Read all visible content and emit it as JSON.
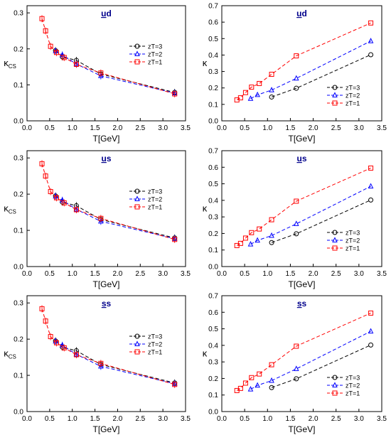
{
  "chart_data": [
    {
      "type": "line",
      "title": "ud",
      "title_underlined": "u",
      "xlabel": "T[GeV]",
      "ylabel": "κ",
      "ylabel_sub": "CS",
      "xlim": [
        0,
        3.5
      ],
      "ylim": [
        0,
        0.32
      ],
      "xticks": [
        0.0,
        0.5,
        1.0,
        1.5,
        2.0,
        2.5,
        3.0,
        3.5
      ],
      "yticks": [
        0.0,
        0.1,
        0.2,
        0.3
      ],
      "grid": false,
      "legend_position": "right-middle",
      "series": [
        {
          "name": "zT=3",
          "color": "#000000",
          "marker": "circle",
          "x": [
            0.63,
            0.78,
            1.09,
            1.63,
            3.26
          ],
          "y": [
            0.195,
            0.178,
            0.168,
            0.13,
            0.079
          ]
        },
        {
          "name": "zT=2",
          "color": "#0000ff",
          "marker": "triangle",
          "x": [
            0.63,
            0.78,
            1.09,
            1.63,
            3.26
          ],
          "y": [
            0.194,
            0.183,
            0.158,
            0.125,
            0.077
          ]
        },
        {
          "name": "zT=1",
          "color": "#ff0000",
          "marker": "square",
          "x": [
            0.33,
            0.41,
            0.52,
            0.65,
            0.82,
            1.09,
            1.63,
            3.26
          ],
          "y": [
            0.284,
            0.25,
            0.207,
            0.19,
            0.176,
            0.157,
            0.133,
            0.075
          ]
        }
      ]
    },
    {
      "type": "line",
      "title": "ud",
      "title_underlined": "u",
      "xlabel": "T[GeV]",
      "ylabel": "κ",
      "ylabel_sub": "",
      "xlim": [
        0,
        3.5
      ],
      "ylim": [
        0,
        0.7
      ],
      "xticks": [
        0.0,
        0.5,
        1.0,
        1.5,
        2.0,
        2.5,
        3.0,
        3.5
      ],
      "yticks": [
        0.0,
        0.1,
        0.2,
        0.3,
        0.4,
        0.5,
        0.6,
        0.7
      ],
      "grid": false,
      "legend_position": "bottom-right",
      "series": [
        {
          "name": "zT=3",
          "color": "#000000",
          "marker": "circle",
          "x": [
            1.09,
            1.63,
            3.26
          ],
          "y": [
            0.145,
            0.198,
            0.402
          ]
        },
        {
          "name": "zT=2",
          "color": "#0000ff",
          "marker": "triangle",
          "x": [
            0.63,
            0.78,
            1.09,
            1.63,
            3.26
          ],
          "y": [
            0.135,
            0.158,
            0.187,
            0.258,
            0.485
          ]
        },
        {
          "name": "zT=1",
          "color": "#ff0000",
          "marker": "square",
          "x": [
            0.33,
            0.41,
            0.52,
            0.65,
            0.82,
            1.09,
            1.63,
            3.26
          ],
          "y": [
            0.127,
            0.14,
            0.172,
            0.205,
            0.227,
            0.283,
            0.395,
            0.595
          ]
        }
      ]
    },
    {
      "type": "line",
      "title": "us",
      "title_underlined": "u",
      "xlabel": "T[GeV]",
      "ylabel": "κ",
      "ylabel_sub": "CS",
      "xlim": [
        0,
        3.5
      ],
      "ylim": [
        0,
        0.32
      ],
      "xticks": [
        0.0,
        0.5,
        1.0,
        1.5,
        2.0,
        2.5,
        3.0,
        3.5
      ],
      "yticks": [
        0.0,
        0.1,
        0.2,
        0.3
      ],
      "grid": false,
      "legend_position": "right-middle",
      "series": [
        {
          "name": "zT=3",
          "color": "#000000",
          "marker": "circle",
          "x": [
            0.63,
            0.78,
            1.09,
            1.63,
            3.26
          ],
          "y": [
            0.195,
            0.178,
            0.168,
            0.13,
            0.079
          ]
        },
        {
          "name": "zT=2",
          "color": "#0000ff",
          "marker": "triangle",
          "x": [
            0.63,
            0.78,
            1.09,
            1.63,
            3.26
          ],
          "y": [
            0.194,
            0.183,
            0.158,
            0.125,
            0.077
          ]
        },
        {
          "name": "zT=1",
          "color": "#ff0000",
          "marker": "square",
          "x": [
            0.33,
            0.41,
            0.52,
            0.65,
            0.82,
            1.09,
            1.63,
            3.26
          ],
          "y": [
            0.284,
            0.25,
            0.207,
            0.19,
            0.176,
            0.157,
            0.133,
            0.075
          ]
        }
      ]
    },
    {
      "type": "line",
      "title": "us",
      "title_underlined": "u",
      "xlabel": "T[GeV]",
      "ylabel": "κ",
      "ylabel_sub": "",
      "xlim": [
        0,
        3.5
      ],
      "ylim": [
        0,
        0.7
      ],
      "xticks": [
        0.0,
        0.5,
        1.0,
        1.5,
        2.0,
        2.5,
        3.0,
        3.5
      ],
      "yticks": [
        0.0,
        0.1,
        0.2,
        0.3,
        0.4,
        0.5,
        0.6,
        0.7
      ],
      "grid": false,
      "legend_position": "bottom-right",
      "series": [
        {
          "name": "zT=3",
          "color": "#000000",
          "marker": "circle",
          "x": [
            1.09,
            1.63,
            3.26
          ],
          "y": [
            0.145,
            0.198,
            0.402
          ]
        },
        {
          "name": "zT=2",
          "color": "#0000ff",
          "marker": "triangle",
          "x": [
            0.63,
            0.78,
            1.09,
            1.63,
            3.26
          ],
          "y": [
            0.135,
            0.158,
            0.187,
            0.258,
            0.485
          ]
        },
        {
          "name": "zT=1",
          "color": "#ff0000",
          "marker": "square",
          "x": [
            0.33,
            0.41,
            0.52,
            0.65,
            0.82,
            1.09,
            1.63,
            3.26
          ],
          "y": [
            0.127,
            0.14,
            0.172,
            0.205,
            0.227,
            0.283,
            0.395,
            0.595
          ]
        }
      ]
    },
    {
      "type": "line",
      "title": "ss",
      "title_underlined": "s",
      "xlabel": "T[GeV]",
      "ylabel": "κ",
      "ylabel_sub": "CS",
      "xlim": [
        0,
        3.5
      ],
      "ylim": [
        0,
        0.32
      ],
      "xticks": [
        0.0,
        0.5,
        1.0,
        1.5,
        2.0,
        2.5,
        3.0,
        3.5
      ],
      "yticks": [
        0.0,
        0.1,
        0.2,
        0.3
      ],
      "grid": false,
      "legend_position": "right-middle",
      "series": [
        {
          "name": "zT=3",
          "color": "#000000",
          "marker": "circle",
          "x": [
            0.63,
            0.78,
            1.09,
            1.63,
            3.26
          ],
          "y": [
            0.195,
            0.178,
            0.168,
            0.13,
            0.079
          ]
        },
        {
          "name": "zT=2",
          "color": "#0000ff",
          "marker": "triangle",
          "x": [
            0.63,
            0.78,
            1.09,
            1.63,
            3.26
          ],
          "y": [
            0.194,
            0.183,
            0.158,
            0.125,
            0.077
          ]
        },
        {
          "name": "zT=1",
          "color": "#ff0000",
          "marker": "square",
          "x": [
            0.33,
            0.41,
            0.52,
            0.65,
            0.82,
            1.09,
            1.63,
            3.26
          ],
          "y": [
            0.284,
            0.25,
            0.207,
            0.19,
            0.176,
            0.157,
            0.133,
            0.075
          ]
        }
      ]
    },
    {
      "type": "line",
      "title": "ss",
      "title_underlined": "s",
      "xlabel": "T[GeV]",
      "ylabel": "κ",
      "ylabel_sub": "",
      "xlim": [
        0,
        3.5
      ],
      "ylim": [
        0,
        0.7
      ],
      "xticks": [
        0.0,
        0.5,
        1.0,
        1.5,
        2.0,
        2.5,
        3.0,
        3.5
      ],
      "yticks": [
        0.0,
        0.1,
        0.2,
        0.3,
        0.4,
        0.5,
        0.6,
        0.7
      ],
      "grid": false,
      "legend_position": "bottom-right",
      "series": [
        {
          "name": "zT=3",
          "color": "#000000",
          "marker": "circle",
          "x": [
            1.09,
            1.63,
            3.26
          ],
          "y": [
            0.145,
            0.198,
            0.402
          ]
        },
        {
          "name": "zT=2",
          "color": "#0000ff",
          "marker": "triangle",
          "x": [
            0.63,
            0.78,
            1.09,
            1.63,
            3.26
          ],
          "y": [
            0.135,
            0.158,
            0.187,
            0.258,
            0.485
          ]
        },
        {
          "name": "zT=1",
          "color": "#ff0000",
          "marker": "square",
          "x": [
            0.33,
            0.41,
            0.52,
            0.65,
            0.82,
            1.09,
            1.63,
            3.26
          ],
          "y": [
            0.127,
            0.14,
            0.172,
            0.205,
            0.227,
            0.283,
            0.395,
            0.595
          ]
        }
      ]
    }
  ]
}
